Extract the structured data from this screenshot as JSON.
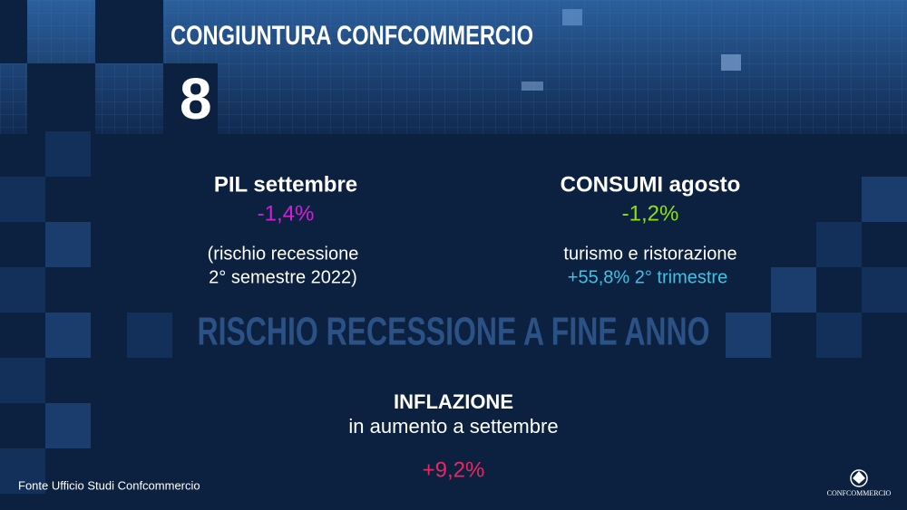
{
  "header": {
    "title": "CONGIUNTURA CONFCOMMERCIO",
    "number": "8"
  },
  "pil": {
    "label": "PIL settembre",
    "value": "-1,4%",
    "note": [
      "(rischio recessione",
      " 2° semestre 2022)"
    ]
  },
  "consumi": {
    "label": "CONSUMI agosto",
    "value": "-1,2%",
    "note": "turismo e ristorazione",
    "highlight": "+55,8% 2° trimestre"
  },
  "headline": "RISCHIO RECESSIONE A FINE ANNO",
  "inflazione": {
    "label": "INFLAZIONE",
    "note": "in aumento a settembre",
    "value": "+9,2%"
  },
  "footer": {
    "source": "Fonte Ufficio Studi Confcommercio"
  },
  "logo": {
    "name": "CONFCOMMERCIO"
  }
}
